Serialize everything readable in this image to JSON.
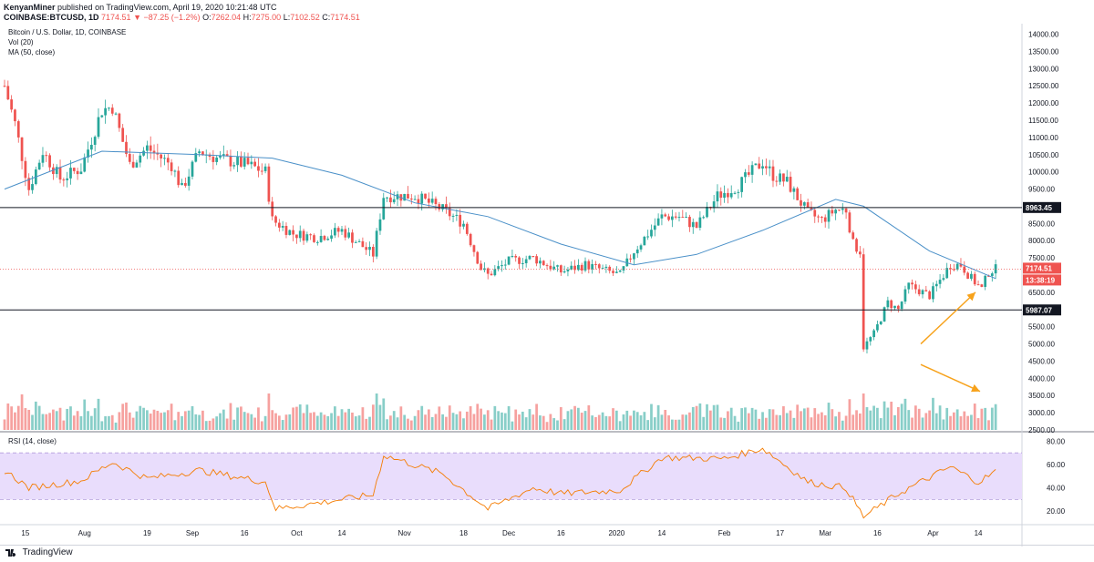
{
  "header": {
    "author": "KenyanMiner",
    "published_text": "published on TradingView.com, April 19, 2020 10:21:48 UTC",
    "symbol": "COINBASE:BTCUSD, 1D",
    "last": "7174.51",
    "change": "▼ −87.25 (−1.2%)",
    "open_label": "O:",
    "open": "7262.04",
    "high_label": "H:",
    "high": "7275.00",
    "low_label": "L:",
    "low": "7102.52",
    "close_label": "C:",
    "close": "7174.51"
  },
  "legend": {
    "title": "Bitcoin / U.S. Dollar, 1D, COINBASE",
    "vol": "Vol (20)",
    "ma": "MA (50, close)",
    "rsi": "RSI (14, close)"
  },
  "price_axis": {
    "labels": [
      "14000.00",
      "13500.00",
      "13000.00",
      "12500.00",
      "12000.00",
      "11500.00",
      "11000.00",
      "10500.00",
      "10000.00",
      "9500.00",
      "8500.00",
      "8000.00",
      "7500.00",
      "6500.00",
      "5500.00",
      "5000.00",
      "4500.00",
      "4000.00",
      "3500.00",
      "3000.00",
      "2500.00"
    ],
    "values": [
      14000,
      13500,
      13000,
      12500,
      12000,
      11500,
      11000,
      10500,
      10000,
      9500,
      8500,
      8000,
      7500,
      6500,
      5500,
      5000,
      4500,
      4000,
      3500,
      3000,
      2500
    ]
  },
  "markers": {
    "resistance": "8963.45",
    "support": "5987.07",
    "last_price": "7174.51",
    "countdown": "13:38:19"
  },
  "rsi_axis": {
    "labels": [
      "80.00",
      "60.00",
      "40.00",
      "20.00"
    ],
    "values": [
      80,
      60,
      40,
      20
    ]
  },
  "time_axis": [
    "15",
    "Aug",
    "19",
    "Sep",
    "16",
    "Oct",
    "14",
    "Nov",
    "18",
    "Dec",
    "16",
    "2020",
    "14",
    "Feb",
    "17",
    "Mar",
    "16",
    "Apr",
    "14"
  ],
  "footer": {
    "brand": "TradingView"
  },
  "colors": {
    "up": "#26a69a",
    "down": "#ef5350",
    "ma": "#4a90c8",
    "rsi": "#f57c00",
    "rsi_band": "#e9ddfc",
    "arrow": "#f7a21b"
  },
  "chart_data": {
    "type": "candlestick",
    "title": "Bitcoin / U.S. Dollar, 1D, COINBASE",
    "x_range": [
      "2019-07-09",
      "2020-04-19"
    ],
    "ylim": [
      2500,
      14200
    ],
    "key_levels": [
      8963.45,
      5987.07
    ],
    "last_price": 7174.51,
    "ma_period": 50,
    "rsi_period": 14,
    "rsi_bands": [
      30,
      70
    ],
    "price_path": [
      [
        "2019-07-09",
        12500
      ],
      [
        "2019-07-12",
        11400
      ],
      [
        "2019-07-16",
        9500
      ],
      [
        "2019-07-20",
        10600
      ],
      [
        "2019-07-25",
        9800
      ],
      [
        "2019-07-31",
        10100
      ],
      [
        "2019-08-06",
        11800
      ],
      [
        "2019-08-09",
        11900
      ],
      [
        "2019-08-14",
        10200
      ],
      [
        "2019-08-19",
        10700
      ],
      [
        "2019-08-26",
        10200
      ],
      [
        "2019-08-29",
        9500
      ],
      [
        "2019-09-03",
        10600
      ],
      [
        "2019-09-08",
        10400
      ],
      [
        "2019-09-17",
        10200
      ],
      [
        "2019-09-22",
        10000
      ],
      [
        "2019-09-24",
        8600
      ],
      [
        "2019-09-30",
        8200
      ],
      [
        "2019-10-07",
        8100
      ],
      [
        "2019-10-14",
        8300
      ],
      [
        "2019-10-23",
        7600
      ],
      [
        "2019-10-26",
        9300
      ],
      [
        "2019-11-04",
        9300
      ],
      [
        "2019-11-12",
        8900
      ],
      [
        "2019-11-18",
        8500
      ],
      [
        "2019-11-23",
        7200
      ],
      [
        "2019-11-25",
        7000
      ],
      [
        "2019-12-01",
        7400
      ],
      [
        "2019-12-08",
        7500
      ],
      [
        "2019-12-16",
        7100
      ],
      [
        "2019-12-23",
        7300
      ],
      [
        "2020-01-02",
        7000
      ],
      [
        "2020-01-06",
        7700
      ],
      [
        "2020-01-14",
        8700
      ],
      [
        "2020-01-19",
        8700
      ],
      [
        "2020-01-24",
        8400
      ],
      [
        "2020-01-30",
        9300
      ],
      [
        "2020-02-05",
        9600
      ],
      [
        "2020-02-12",
        10300
      ],
      [
        "2020-02-15",
        9900
      ],
      [
        "2020-02-19",
        9700
      ],
      [
        "2020-02-25",
        8800
      ],
      [
        "2020-02-29",
        8600
      ],
      [
        "2020-03-04",
        8900
      ],
      [
        "2020-03-07",
        8900
      ],
      [
        "2020-03-09",
        7900
      ],
      [
        "2020-03-11",
        7700
      ],
      [
        "2020-03-12",
        4900
      ],
      [
        "2020-03-15",
        5300
      ],
      [
        "2020-03-19",
        6200
      ],
      [
        "2020-03-22",
        6000
      ],
      [
        "2020-03-25",
        6700
      ],
      [
        "2020-03-31",
        6400
      ],
      [
        "2020-04-06",
        7300
      ],
      [
        "2020-04-09",
        7300
      ],
      [
        "2020-04-12",
        6900
      ],
      [
        "2020-04-15",
        6600
      ],
      [
        "2020-04-17",
        7100
      ],
      [
        "2020-04-19",
        7174.51
      ]
    ],
    "rsi_path": [
      [
        "2019-07-09",
        55
      ],
      [
        "2019-07-16",
        40
      ],
      [
        "2019-07-31",
        46
      ],
      [
        "2019-08-09",
        62
      ],
      [
        "2019-08-19",
        48
      ],
      [
        "2019-09-03",
        55
      ],
      [
        "2019-09-22",
        45
      ],
      [
        "2019-09-25",
        22
      ],
      [
        "2019-10-07",
        27
      ],
      [
        "2019-10-23",
        34
      ],
      [
        "2019-10-26",
        68
      ],
      [
        "2019-11-12",
        52
      ],
      [
        "2019-11-25",
        22
      ],
      [
        "2019-12-08",
        40
      ],
      [
        "2019-12-16",
        35
      ],
      [
        "2020-01-02",
        38
      ],
      [
        "2020-01-14",
        66
      ],
      [
        "2020-02-01",
        65
      ],
      [
        "2020-02-12",
        74
      ],
      [
        "2020-02-25",
        45
      ],
      [
        "2020-03-07",
        40
      ],
      [
        "2020-03-12",
        15
      ],
      [
        "2020-03-22",
        35
      ],
      [
        "2020-04-06",
        58
      ],
      [
        "2020-04-14",
        45
      ],
      [
        "2020-04-19",
        54
      ]
    ],
    "ma_path": [
      [
        "2019-07-09",
        9500
      ],
      [
        "2019-08-06",
        10600
      ],
      [
        "2019-09-03",
        10500
      ],
      [
        "2019-09-24",
        10400
      ],
      [
        "2019-10-14",
        9900
      ],
      [
        "2019-11-04",
        9100
      ],
      [
        "2019-11-25",
        8700
      ],
      [
        "2019-12-16",
        7900
      ],
      [
        "2020-01-06",
        7300
      ],
      [
        "2020-01-24",
        7600
      ],
      [
        "2020-02-12",
        8300
      ],
      [
        "2020-03-04",
        9200
      ],
      [
        "2020-03-12",
        9000
      ],
      [
        "2020-03-31",
        7700
      ],
      [
        "2020-04-19",
        6900
      ]
    ]
  }
}
